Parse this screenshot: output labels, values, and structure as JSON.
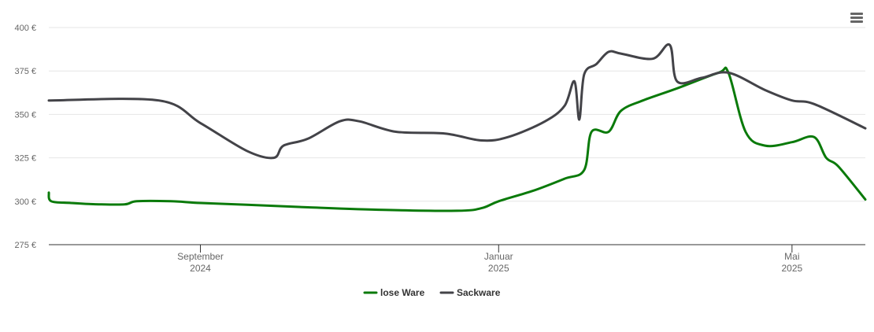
{
  "chart_data": {
    "type": "line",
    "title": "",
    "xlabel": "",
    "ylabel": "",
    "y_tick_labels": [
      "275 €",
      "300 €",
      "325 €",
      "350 €",
      "375 €",
      "400 €"
    ],
    "y_ticks": [
      275,
      300,
      325,
      350,
      375,
      400
    ],
    "ylim": [
      275,
      400
    ],
    "x_range": [
      "2024-07-01",
      "2025-05-31"
    ],
    "x_ticks": [
      {
        "date": "2024-09-01",
        "month": "September",
        "year": "2024"
      },
      {
        "date": "2025-01-01",
        "month": "Januar",
        "year": "2025"
      },
      {
        "date": "2025-05-01",
        "month": "Mai",
        "year": "2025"
      }
    ],
    "grid": true,
    "legend_position": "bottom-center",
    "series": [
      {
        "name": "lose Ware",
        "color": "#0a7a0a",
        "points": [
          [
            "2024-07-01",
            305
          ],
          [
            "2024-07-02",
            300
          ],
          [
            "2024-07-10",
            299
          ],
          [
            "2024-07-20",
            298.3
          ],
          [
            "2024-08-01",
            298.2
          ],
          [
            "2024-08-06",
            300
          ],
          [
            "2024-08-20",
            300
          ],
          [
            "2024-09-01",
            299
          ],
          [
            "2024-09-20",
            298
          ],
          [
            "2024-10-15",
            296.5
          ],
          [
            "2024-11-15",
            295
          ],
          [
            "2024-12-15",
            294.5
          ],
          [
            "2024-12-25",
            296
          ],
          [
            "2025-01-01",
            300
          ],
          [
            "2025-01-15",
            306
          ],
          [
            "2025-01-28",
            313
          ],
          [
            "2025-02-05",
            318
          ],
          [
            "2025-02-08",
            340
          ],
          [
            "2025-02-15",
            340
          ],
          [
            "2025-02-20",
            352
          ],
          [
            "2025-03-01",
            358
          ],
          [
            "2025-03-15",
            365
          ],
          [
            "2025-04-01",
            374
          ],
          [
            "2025-04-05",
            374
          ],
          [
            "2025-04-12",
            340
          ],
          [
            "2025-04-20",
            332
          ],
          [
            "2025-05-01",
            334
          ],
          [
            "2025-05-10",
            337
          ],
          [
            "2025-05-15",
            325
          ],
          [
            "2025-05-20",
            320
          ],
          [
            "2025-05-31",
            301
          ]
        ]
      },
      {
        "name": "Sackware",
        "color": "#434348",
        "points": [
          [
            "2024-07-01",
            358
          ],
          [
            "2024-08-15",
            358
          ],
          [
            "2024-09-01",
            345
          ],
          [
            "2024-09-20",
            329
          ],
          [
            "2024-10-01",
            325
          ],
          [
            "2024-10-05",
            332
          ],
          [
            "2024-10-15",
            336
          ],
          [
            "2024-10-28",
            346
          ],
          [
            "2024-11-05",
            346
          ],
          [
            "2024-11-20",
            340
          ],
          [
            "2024-12-10",
            339
          ],
          [
            "2024-12-25",
            335
          ],
          [
            "2025-01-05",
            337
          ],
          [
            "2025-01-20",
            346
          ],
          [
            "2025-01-28",
            355
          ],
          [
            "2025-02-01",
            369
          ],
          [
            "2025-02-03",
            347
          ],
          [
            "2025-02-05",
            373
          ],
          [
            "2025-02-10",
            379
          ],
          [
            "2025-02-15",
            386
          ],
          [
            "2025-02-20",
            385
          ],
          [
            "2025-03-05",
            382
          ],
          [
            "2025-03-12",
            390
          ],
          [
            "2025-03-15",
            369
          ],
          [
            "2025-03-25",
            371
          ],
          [
            "2025-04-05",
            374
          ],
          [
            "2025-04-20",
            364
          ],
          [
            "2025-05-01",
            358
          ],
          [
            "2025-05-10",
            356
          ],
          [
            "2025-05-31",
            342
          ]
        ]
      }
    ]
  },
  "menu": {
    "icon": "menu-icon"
  }
}
